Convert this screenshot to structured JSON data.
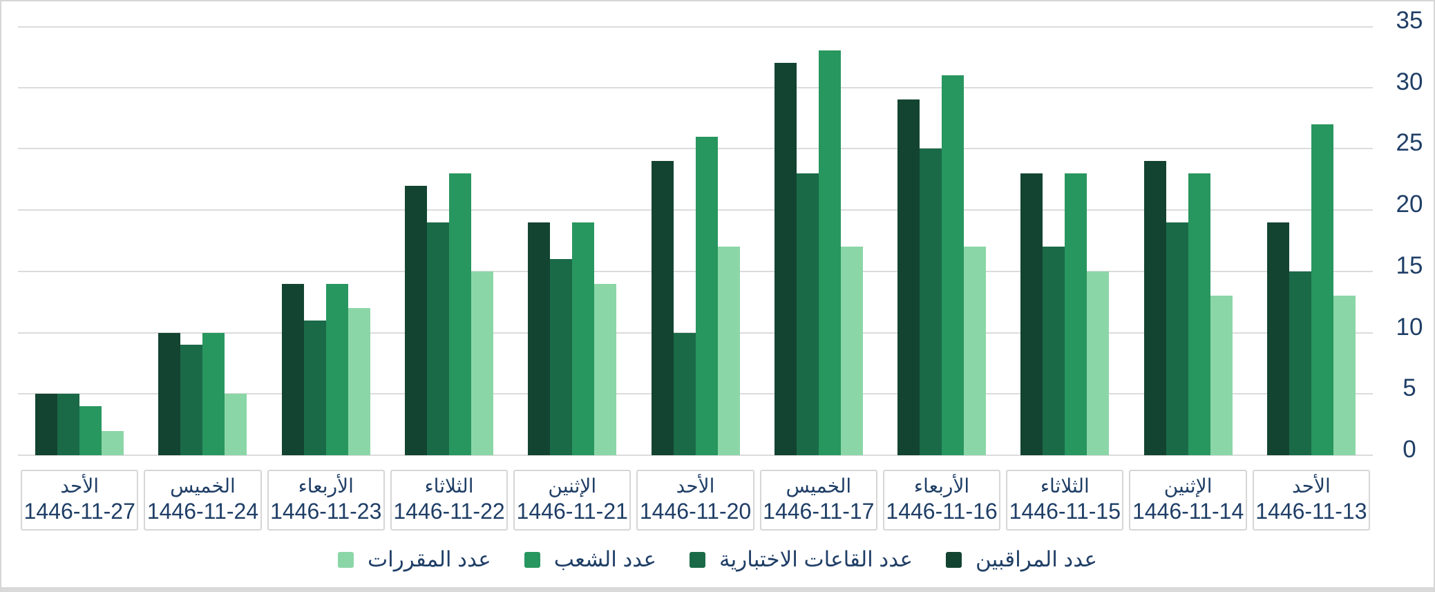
{
  "chart_data": {
    "type": "bar",
    "direction": "rtl",
    "title": "",
    "xlabel": "",
    "ylabel": "",
    "ylim": [
      0,
      35
    ],
    "ytick_step": 5,
    "yticks": [
      "0",
      "5",
      "10",
      "15",
      "20",
      "25",
      "30",
      "35"
    ],
    "grid": true,
    "legend_position": "bottom",
    "categories": [
      {
        "day": "الأحد",
        "date": "1446-11-13"
      },
      {
        "day": "الإثنين",
        "date": "1446-11-14"
      },
      {
        "day": "الثلاثاء",
        "date": "1446-11-15"
      },
      {
        "day": "الأربعاء",
        "date": "1446-11-16"
      },
      {
        "day": "الخميس",
        "date": "1446-11-17"
      },
      {
        "day": "الأحد",
        "date": "1446-11-20"
      },
      {
        "day": "الإثنين",
        "date": "1446-11-21"
      },
      {
        "day": "الثلاثاء",
        "date": "1446-11-22"
      },
      {
        "day": "الأربعاء",
        "date": "1446-11-23"
      },
      {
        "day": "الخميس",
        "date": "1446-11-24"
      },
      {
        "day": "الأحد",
        "date": "1446-11-27"
      }
    ],
    "series": [
      {
        "name": "عدد المراقبين",
        "color": "#134431",
        "values": [
          19,
          24,
          23,
          29,
          32,
          24,
          19,
          22,
          14,
          10,
          5
        ]
      },
      {
        "name": "عدد القاعات الاختبارية",
        "color": "#1a6a48",
        "values": [
          15,
          19,
          17,
          25,
          23,
          10,
          16,
          19,
          11,
          9,
          5
        ]
      },
      {
        "name": "عدد الشعب",
        "color": "#28965f",
        "values": [
          27,
          23,
          23,
          31,
          33,
          26,
          19,
          23,
          14,
          10,
          4
        ]
      },
      {
        "name": "عدد المقررات",
        "color": "#8bd6a7",
        "values": [
          13,
          13,
          15,
          17,
          17,
          17,
          14,
          15,
          12,
          5,
          2
        ]
      }
    ],
    "colors": {
      "text": "#1f3e66",
      "gridline": "#dbdbdb",
      "border": "#d6d6d6",
      "background": "#ffffff"
    }
  }
}
